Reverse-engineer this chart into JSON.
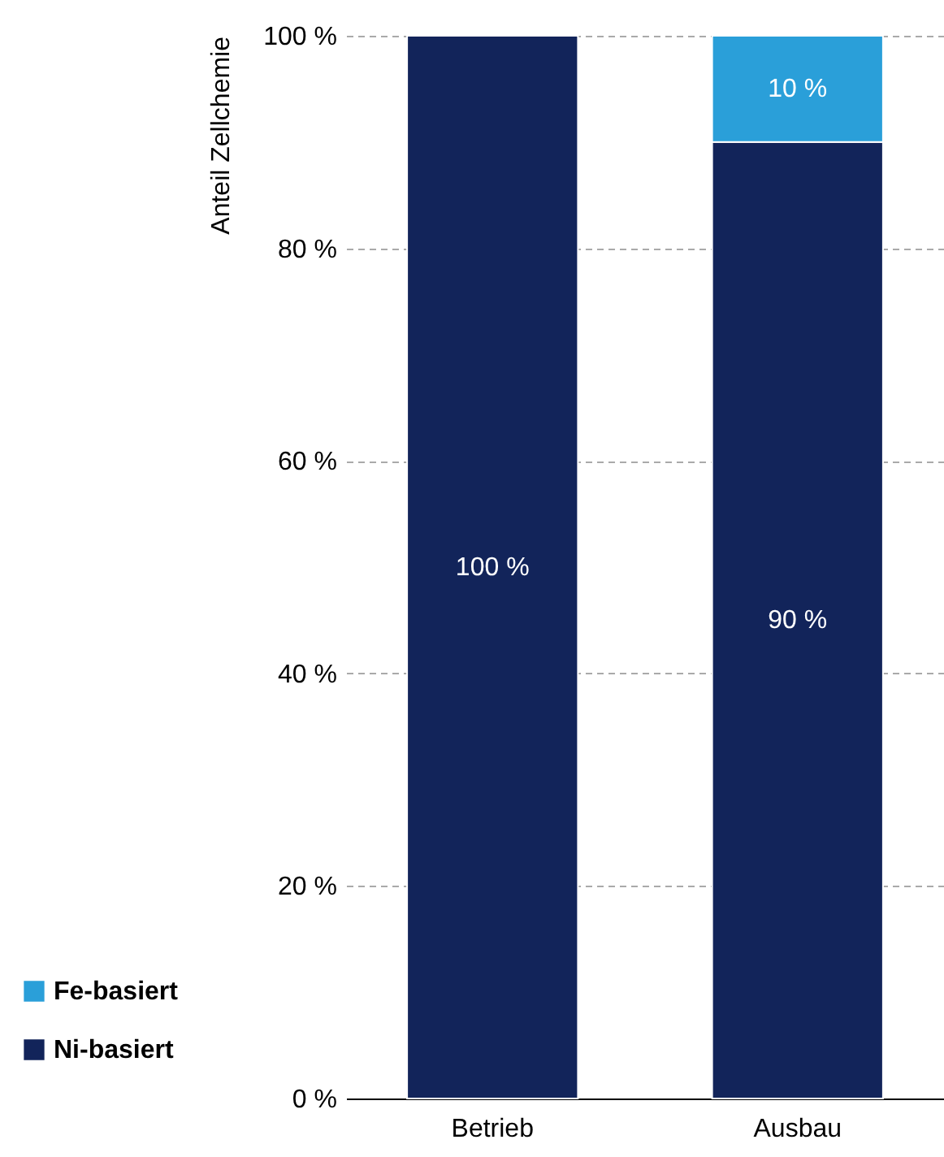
{
  "chart_data": {
    "type": "bar",
    "ylabel": "Anteil Zellchemie",
    "categories": [
      "Betrieb",
      "Ausbau"
    ],
    "stacked": true,
    "series": [
      {
        "name": "Ni-basiert",
        "color": "#12245a",
        "values": [
          100,
          90
        ],
        "value_labels": [
          "100 %",
          "90 %"
        ]
      },
      {
        "name": "Fe-basiert",
        "color": "#2a9fd9",
        "values": [
          0,
          10
        ],
        "value_labels": [
          null,
          "10 %"
        ]
      }
    ],
    "ylim": [
      0,
      100
    ],
    "yticks": [
      {
        "value": 0,
        "label": "0 %"
      },
      {
        "value": 20,
        "label": "20 %"
      },
      {
        "value": 40,
        "label": "40 %"
      },
      {
        "value": 60,
        "label": "60 %"
      },
      {
        "value": 80,
        "label": "80 %"
      },
      {
        "value": 100,
        "label": "100 %"
      }
    ],
    "grid": "y",
    "legend": "bottom left"
  }
}
